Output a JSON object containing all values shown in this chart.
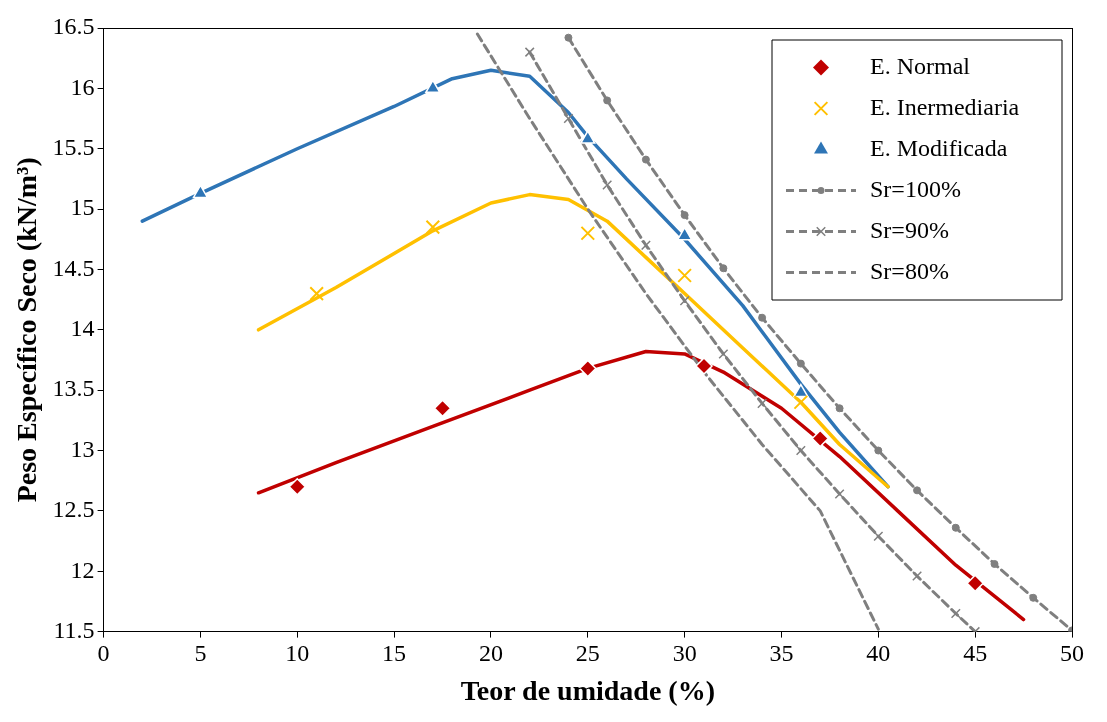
{
  "chart_data": {
    "type": "scatter",
    "xlabel": "Teor de umidade (%)",
    "ylabel": "Peso Específico Seco (kN/m³)",
    "xlim": [
      0,
      50
    ],
    "xticks": [
      0,
      5,
      10,
      15,
      20,
      25,
      30,
      35,
      40,
      45,
      50
    ],
    "ylim": [
      11.5,
      16.5
    ],
    "yticks": [
      11.5,
      12,
      12.5,
      13,
      13.5,
      14,
      14.5,
      15,
      15.5,
      16,
      16.5
    ],
    "grid": false,
    "legend": "top right",
    "series": [
      {
        "name": "E. Normal",
        "type": "scatter",
        "marker": "diamond",
        "color": "#c00000",
        "x": [
          10,
          17.5,
          25,
          31,
          37,
          45
        ],
        "values": [
          12.7,
          13.35,
          13.68,
          13.7,
          13.1,
          11.9
        ]
      },
      {
        "name": "E. Inermediaria",
        "type": "scatter",
        "marker": "cross",
        "color": "#ffc000",
        "x": [
          11,
          17,
          25,
          30,
          36
        ],
        "values": [
          14.3,
          14.85,
          14.8,
          14.45,
          13.4
        ]
      },
      {
        "name": "E. Modificada",
        "type": "scatter",
        "marker": "triangle",
        "color": "#2e75b6",
        "x": [
          5,
          17,
          25,
          30,
          36
        ],
        "values": [
          15.13,
          16.0,
          15.58,
          14.78,
          13.48
        ]
      },
      {
        "name": "Sr=100%",
        "type": "line",
        "marker": "circle",
        "line_style": "dashed",
        "color": "#7f7f7f",
        "x": [
          24,
          26,
          28,
          30,
          32,
          34,
          36,
          38,
          40,
          42,
          44,
          46,
          48,
          50
        ],
        "values": [
          16.42,
          15.9,
          15.41,
          14.95,
          14.51,
          14.1,
          13.72,
          13.35,
          13.0,
          12.67,
          12.36,
          12.06,
          11.78,
          11.51
        ]
      },
      {
        "name": "Sr=90%",
        "type": "line",
        "marker": "cross",
        "line_style": "dashed",
        "color": "#7f7f7f",
        "x": [
          22,
          24,
          26,
          28,
          30,
          32,
          34,
          36,
          38,
          40,
          42,
          44,
          45
        ],
        "values": [
          16.3,
          15.75,
          15.2,
          14.7,
          14.24,
          13.8,
          13.39,
          13.0,
          12.64,
          12.29,
          11.96,
          11.65,
          11.5
        ]
      },
      {
        "name": "Sr=80%",
        "type": "line",
        "marker": "none",
        "line_style": "dashed",
        "color": "#7f7f7f",
        "x": [
          19.3,
          22,
          25,
          28,
          31,
          34,
          37,
          40
        ],
        "values": [
          16.45,
          15.75,
          15.0,
          14.3,
          13.65,
          13.05,
          12.5,
          11.52
        ]
      },
      {
        "type": "line",
        "marker": "none",
        "line_style": "solid",
        "color": "#c00000",
        "x": [
          8,
          12,
          17,
          22,
          25,
          28,
          30,
          32,
          35,
          38,
          41,
          44,
          47.5
        ],
        "values": [
          12.65,
          12.9,
          13.2,
          13.5,
          13.68,
          13.82,
          13.8,
          13.65,
          13.35,
          12.95,
          12.5,
          12.05,
          11.6
        ]
      },
      {
        "type": "line",
        "marker": "none",
        "line_style": "solid",
        "color": "#ffc000",
        "x": [
          8,
          12,
          17,
          20,
          22,
          24,
          26,
          28,
          30,
          33,
          36,
          38,
          40.5
        ],
        "values": [
          14.0,
          14.35,
          14.82,
          15.05,
          15.12,
          15.08,
          14.9,
          14.6,
          14.3,
          13.85,
          13.4,
          13.05,
          12.7
        ]
      },
      {
        "type": "line",
        "marker": "none",
        "line_style": "solid",
        "color": "#2e75b6",
        "x": [
          2,
          5,
          10,
          15,
          18,
          20,
          22,
          24,
          25,
          27,
          30,
          33,
          36,
          38,
          40.5
        ],
        "values": [
          14.9,
          15.13,
          15.5,
          15.85,
          16.08,
          16.15,
          16.1,
          15.8,
          15.6,
          15.25,
          14.75,
          14.2,
          13.55,
          13.15,
          12.7
        ]
      }
    ]
  }
}
